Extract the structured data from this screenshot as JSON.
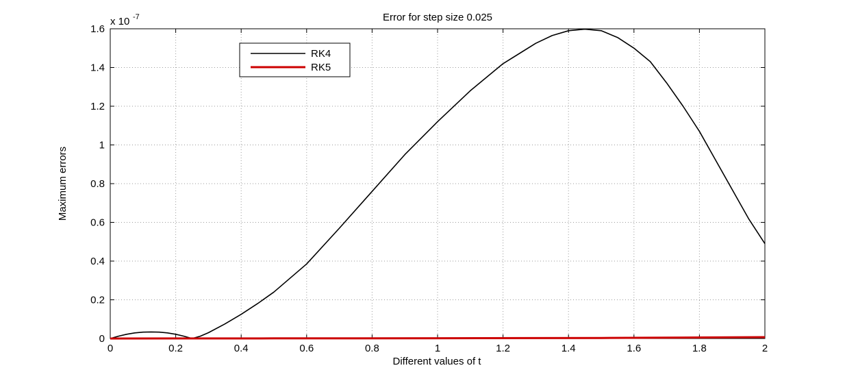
{
  "chart_data": {
    "type": "line",
    "title": "Error for step size 0.025",
    "xlabel": "Different values of t",
    "ylabel": "Maximum errors",
    "y_multiplier": {
      "base": "x 10",
      "exponent": "-7"
    },
    "xlim": [
      0,
      2
    ],
    "ylim": [
      0,
      1.6
    ],
    "x_ticks": [
      0,
      0.2,
      0.4,
      0.6,
      0.8,
      1,
      1.2,
      1.4,
      1.6,
      1.8,
      2
    ],
    "x_tick_labels": [
      "0",
      "0.2",
      "0.4",
      "0.6",
      "0.8",
      "1",
      "1.2",
      "1.4",
      "1.6",
      "1.8",
      "2"
    ],
    "y_ticks": [
      0,
      0.2,
      0.4,
      0.6,
      0.8,
      1,
      1.2,
      1.4,
      1.6
    ],
    "y_tick_labels": [
      "0",
      "0.2",
      "0.4",
      "0.6",
      "0.8",
      "1",
      "1.2",
      "1.4",
      "1.6"
    ],
    "grid": true,
    "legend_position": "top-left",
    "series": [
      {
        "name": "RK4",
        "color": "#000000",
        "x": [
          0,
          0.025,
          0.05,
          0.075,
          0.1,
          0.125,
          0.15,
          0.175,
          0.2,
          0.225,
          0.25,
          0.275,
          0.3,
          0.35,
          0.4,
          0.45,
          0.5,
          0.6,
          0.7,
          0.8,
          0.9,
          1.0,
          1.1,
          1.2,
          1.3,
          1.35,
          1.4,
          1.45,
          1.5,
          1.55,
          1.6,
          1.65,
          1.7,
          1.75,
          1.8,
          1.85,
          1.9,
          1.95,
          2.0
        ],
        "y": [
          0,
          0.012,
          0.022,
          0.029,
          0.033,
          0.034,
          0.033,
          0.029,
          0.022,
          0.012,
          0.0,
          0.012,
          0.03,
          0.075,
          0.125,
          0.18,
          0.24,
          0.385,
          0.57,
          0.76,
          0.95,
          1.12,
          1.28,
          1.42,
          1.525,
          1.565,
          1.59,
          1.598,
          1.59,
          1.555,
          1.5,
          1.43,
          1.32,
          1.2,
          1.07,
          0.92,
          0.77,
          0.62,
          0.49
        ]
      },
      {
        "name": "RK5",
        "color": "#cc0000",
        "x": [
          0,
          0.25,
          0.5,
          0.75,
          1.0,
          1.25,
          1.5,
          1.75,
          2.0
        ],
        "y": [
          0,
          0.0003,
          0.0006,
          0.001,
          0.0015,
          0.002,
          0.003,
          0.005,
          0.007
        ]
      }
    ]
  }
}
